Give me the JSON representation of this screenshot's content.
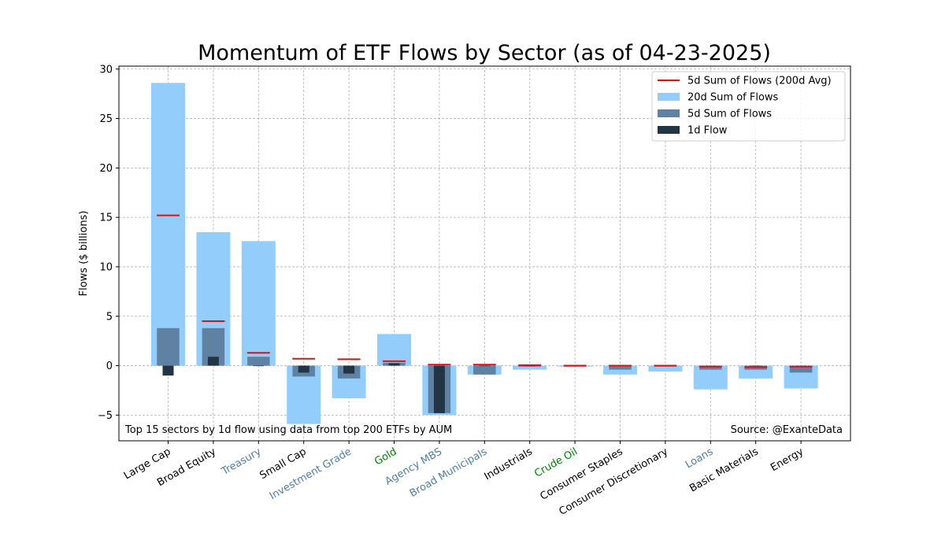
{
  "chart_data": {
    "type": "bar",
    "title": "Momentum of ETF Flows by Sector (as of 04-23-2025)",
    "xlabel": "",
    "ylabel": "Flows ($ billions)",
    "ylim": [
      -7.6,
      30.3
    ],
    "yticks": [
      -5,
      0,
      5,
      10,
      15,
      20,
      25,
      30
    ],
    "grid": true,
    "legend_position": "top-right",
    "categories": [
      "Large Cap",
      "Broad Equity",
      "Treasury",
      "Small Cap",
      "Investment Grade",
      "Gold",
      "Agency MBS",
      "Broad Municipals",
      "Industrials",
      "Crude Oil",
      "Consumer Staples",
      "Consumer Discretionary",
      "Loans",
      "Basic Materials",
      "Energy"
    ],
    "category_label_colors": [
      "#000000",
      "#000000",
      "#4f7ca8",
      "#000000",
      "#4f7ca8",
      "#008000",
      "#4f7ca8",
      "#4f7ca8",
      "#000000",
      "#008000",
      "#000000",
      "#000000",
      "#4f7ca8",
      "#000000",
      "#000000"
    ],
    "series": [
      {
        "name": "20d Sum of Flows",
        "kind": "bar",
        "color": "#93cdfb",
        "values": [
          28.6,
          13.5,
          12.6,
          -5.9,
          -3.3,
          3.2,
          -5.0,
          -0.9,
          -0.4,
          -0.1,
          -0.9,
          -0.6,
          -2.4,
          -1.3,
          -2.3
        ]
      },
      {
        "name": "5d Sum of Flows",
        "kind": "bar",
        "color": "#5f82a3",
        "values": [
          3.8,
          3.8,
          0.9,
          -1.1,
          -1.3,
          0.3,
          -4.8,
          -0.9,
          -0.1,
          -0.1,
          -0.4,
          -0.1,
          -0.4,
          -0.4,
          -0.7
        ]
      },
      {
        "name": "1d Flow",
        "kind": "bar",
        "color": "#233444",
        "values": [
          -1.0,
          0.9,
          -0.05,
          -0.7,
          -0.8,
          0.25,
          -4.8,
          -0.05,
          -0.05,
          -0.05,
          -0.05,
          -0.05,
          -0.05,
          -0.05,
          -0.05
        ]
      },
      {
        "name": "5d Sum of Flows (200d Avg)",
        "kind": "marker",
        "color": "#e01010",
        "values": [
          15.2,
          4.5,
          1.3,
          0.7,
          0.65,
          0.45,
          0.1,
          0.1,
          0.05,
          0.0,
          0.0,
          0.0,
          -0.1,
          -0.15,
          -0.1
        ]
      }
    ],
    "legend_order": [
      "5d Sum of Flows (200d Avg)",
      "20d Sum of Flows",
      "5d Sum of Flows",
      "1d Flow"
    ],
    "annotations": {
      "bottom_left": "Top 15 sectors by 1d flow using data from top 200 ETFs by AUM",
      "bottom_right": "Source: @ExanteData"
    }
  }
}
